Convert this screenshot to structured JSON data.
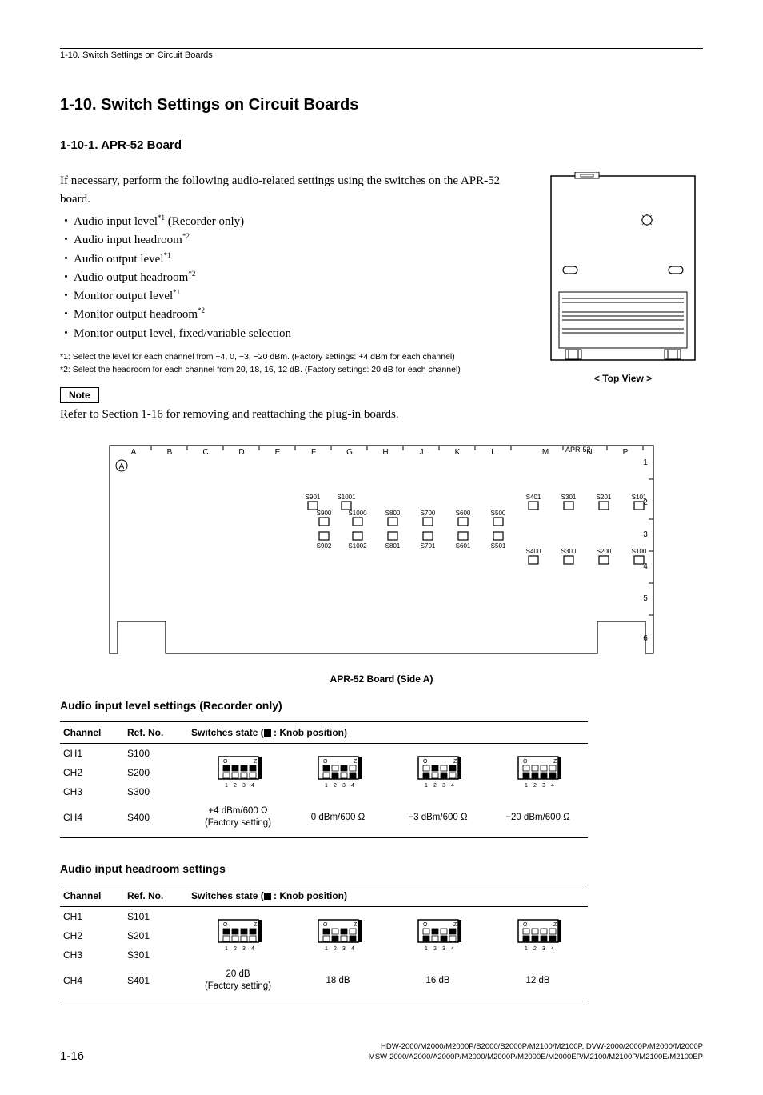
{
  "headerPath": "1-10. Switch Settings on Circuit Boards",
  "title": "1-10. Switch Settings on Circuit Boards",
  "subtitle": "1-10-1.  APR-52 Board",
  "intro": "If necessary, perform the following audio-related settings using the switches on the APR-52 board.",
  "bullets": [
    {
      "text": "Audio input level",
      "sup": "*1",
      "suffix": " (Recorder only)"
    },
    {
      "text": "Audio input headroom",
      "sup": "*2",
      "suffix": ""
    },
    {
      "text": "Audio output level",
      "sup": "*1",
      "suffix": ""
    },
    {
      "text": "Audio output headroom",
      "sup": "*2",
      "suffix": ""
    },
    {
      "text": "Monitor output level",
      "sup": "*1",
      "suffix": ""
    },
    {
      "text": "Monitor output headroom",
      "sup": "*2",
      "suffix": ""
    },
    {
      "text": "Monitor output level, fixed/variable selection",
      "sup": "",
      "suffix": ""
    }
  ],
  "footnotes": [
    "*1:  Select the level for each channel from +4, 0, −3, −20 dBm. (Factory settings: +4 dBm for each channel)",
    "*2:  Select the headroom for each channel from 20, 18, 16, 12 dB. (Factory settings: 20 dB for each channel)"
  ],
  "noteLabel": "Note",
  "noteText": "Refer to Section 1-16 for removing and reattaching the plug-in boards.",
  "topViewLabel": "< Top View >",
  "boardCaption": "APR-52 Board (Side A)",
  "boardColumns": [
    "A",
    "B",
    "C",
    "D",
    "E",
    "F",
    "G",
    "H",
    "J",
    "K",
    "L",
    "M",
    "N",
    "P"
  ],
  "boardRows": [
    "1",
    "2",
    "3",
    "4",
    "5",
    "6"
  ],
  "boardName": "APR-52",
  "boardCircled": "A",
  "switchRefs": {
    "row1": [
      "S901",
      "S1001"
    ],
    "row2": [
      "S900",
      "S1000",
      "S800",
      "S700",
      "S600",
      "S500",
      "S401",
      "S301",
      "S201",
      "S101"
    ],
    "row3": [
      "S902",
      "S1002",
      "S801",
      "S701",
      "S601",
      "S501"
    ],
    "row4": [
      "S400",
      "S300",
      "S200",
      "S100"
    ]
  },
  "table1": {
    "title": "Audio input level settings (Recorder only)",
    "col1": "Channel",
    "col2": "Ref. No.",
    "col3pre": "Switches state (",
    "col3post": " : Knob position)",
    "rows": [
      {
        "ch": "CH1",
        "ref": "S100"
      },
      {
        "ch": "CH2",
        "ref": "S200"
      },
      {
        "ch": "CH3",
        "ref": "S300"
      },
      {
        "ch": "CH4",
        "ref": "S400"
      }
    ],
    "states": [
      {
        "label1": "+4 dBm/600 Ω",
        "label2": "(Factory setting)",
        "knobs": [
          [
            1,
            1,
            1,
            1
          ],
          [
            0,
            0,
            0,
            0
          ]
        ]
      },
      {
        "label1": "0 dBm/600 Ω",
        "label2": "",
        "knobs": [
          [
            1,
            0,
            1,
            0
          ],
          [
            0,
            1,
            0,
            1
          ]
        ]
      },
      {
        "label1": "−3 dBm/600 Ω",
        "label2": "",
        "knobs": [
          [
            0,
            1,
            0,
            1
          ],
          [
            1,
            0,
            1,
            0
          ]
        ]
      },
      {
        "label1": "−20 dBm/600 Ω",
        "label2": "",
        "knobs": [
          [
            0,
            0,
            0,
            0
          ],
          [
            1,
            1,
            1,
            1
          ]
        ]
      }
    ]
  },
  "table2": {
    "title": "Audio input headroom settings",
    "col1": "Channel",
    "col2": "Ref. No.",
    "col3pre": "Switches state (",
    "col3post": " : Knob position)",
    "rows": [
      {
        "ch": "CH1",
        "ref": "S101"
      },
      {
        "ch": "CH2",
        "ref": "S201"
      },
      {
        "ch": "CH3",
        "ref": "S301"
      },
      {
        "ch": "CH4",
        "ref": "S401"
      }
    ],
    "states": [
      {
        "label1": "20 dB",
        "label2": "(Factory setting)",
        "knobs": [
          [
            1,
            1,
            1,
            1
          ],
          [
            0,
            0,
            0,
            0
          ]
        ]
      },
      {
        "label1": "18 dB",
        "label2": "",
        "knobs": [
          [
            1,
            0,
            1,
            0
          ],
          [
            0,
            1,
            0,
            1
          ]
        ]
      },
      {
        "label1": "16 dB",
        "label2": "",
        "knobs": [
          [
            0,
            1,
            0,
            1
          ],
          [
            1,
            0,
            1,
            0
          ]
        ]
      },
      {
        "label1": "12 dB",
        "label2": "",
        "knobs": [
          [
            0,
            0,
            0,
            0
          ],
          [
            1,
            1,
            1,
            1
          ]
        ]
      }
    ]
  },
  "pageNum": "1-16",
  "models1": "HDW-2000/M2000/M2000P/S2000/S2000P/M2100/M2100P, DVW-2000/2000P/M2000/M2000P",
  "models2": "MSW-2000/A2000/A2000P/M2000/M2000P/M2000E/M2000EP/M2100/M2100P/M2100E/M2100EP"
}
